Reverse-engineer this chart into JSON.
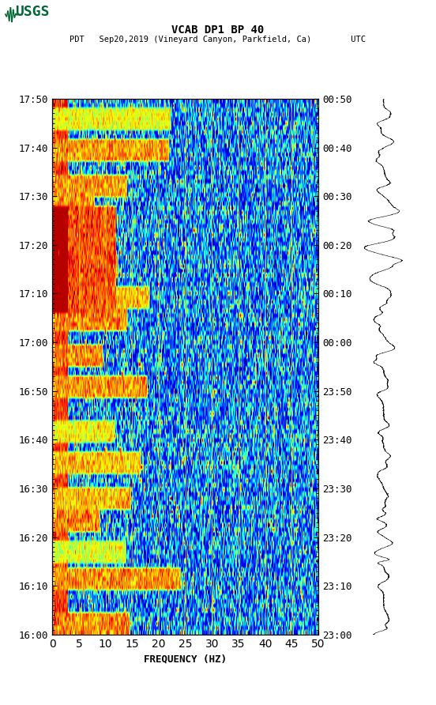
{
  "title_line1": "VCAB DP1 BP 40",
  "title_line2": "PDT   Sep20,2019 (Vineyard Canyon, Parkfield, Ca)        UTC",
  "xlabel": "FREQUENCY (HZ)",
  "left_times": [
    "16:00",
    "16:10",
    "16:20",
    "16:30",
    "16:40",
    "16:50",
    "17:00",
    "17:10",
    "17:20",
    "17:30",
    "17:40",
    "17:50"
  ],
  "right_times": [
    "23:00",
    "23:10",
    "23:20",
    "23:30",
    "23:40",
    "23:50",
    "00:00",
    "00:10",
    "00:20",
    "00:30",
    "00:40",
    "00:50"
  ],
  "freq_ticks": [
    0,
    5,
    10,
    15,
    20,
    25,
    30,
    35,
    40,
    45,
    50
  ],
  "freq_min": 0,
  "freq_max": 50,
  "n_time_rows": 120,
  "n_freq_cols": 500,
  "background_color": "#ffffff",
  "spectrogram_cmap": "jet",
  "vline_color": "#ffd700",
  "vline_positions": [
    5,
    10,
    15,
    20,
    25,
    30,
    35,
    40,
    45
  ],
  "time_label_fontsize": 9,
  "axis_label_fontsize": 9,
  "title_fontsize": 10,
  "usgs_color": "#006633"
}
